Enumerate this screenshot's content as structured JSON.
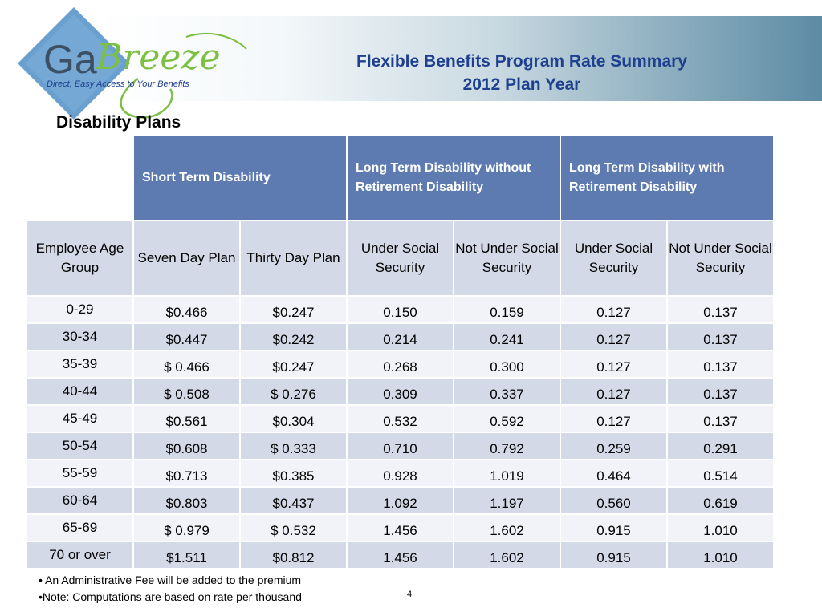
{
  "logo": {
    "text_ga": "Ga",
    "text_breeze": "Breeze",
    "tagline": "Direct, Easy Access to Your Benefits",
    "colors": {
      "diamond": "#6aa0d0",
      "ga": "#3d4f63",
      "breeze": "#7cc043",
      "tagline": "#1f3f8f"
    }
  },
  "title": {
    "line1": "Flexible Benefits  Program Rate Summary",
    "line2": "2012 Plan Year"
  },
  "section_title": "Disability  Plans",
  "table": {
    "groups": {
      "std": "Short Term Disability",
      "ltd_without": "Long Term Disability without Retirement Disability",
      "ltd_with": "Long Term Disability with Retirement Disability"
    },
    "subheaders": {
      "age_group": "Employee Age Group",
      "seven_day": "Seven Day Plan",
      "thirty_day": "Thirty Day Plan",
      "ltd_without_under": "Under Social Security",
      "ltd_without_not_under": "Not Under Social Security",
      "ltd_with_under": "Under Social Security",
      "ltd_with_not_under": "Not Under Social Security"
    },
    "rows": [
      [
        "0-29",
        "$0.466",
        "$0.247",
        "0.150",
        "0.159",
        "0.127",
        "0.137"
      ],
      [
        "30-34",
        "$0.447",
        "$0.242",
        "0.214",
        "0.241",
        "0.127",
        "0.137"
      ],
      [
        "35-39",
        "$ 0.466",
        "$0.247",
        "0.268",
        "0.300",
        "0.127",
        "0.137"
      ],
      [
        "40-44",
        "$ 0.508",
        "$ 0.276",
        "0.309",
        "0.337",
        "0.127",
        "0.137"
      ],
      [
        "45-49",
        "$0.561",
        "$0.304",
        "0.532",
        "0.592",
        "0.127",
        "0.137"
      ],
      [
        "50-54",
        "$0.608",
        "$  0.333",
        "0.710",
        "0.792",
        "0.259",
        "0.291"
      ],
      [
        "55-59",
        "$0.713",
        "$0.385",
        "0.928",
        "1.019",
        "0.464",
        "0.514"
      ],
      [
        "60-64",
        "$0.803",
        "$0.437",
        "1.092",
        "1.197",
        "0.560",
        "0.619"
      ],
      [
        "65-69",
        "$ 0.979",
        "$ 0.532",
        "1.456",
        "1.602",
        "0.915",
        "1.010"
      ],
      [
        "70  or over",
        "$1.511",
        "$0.812",
        "1.456",
        "1.602",
        "0.915",
        "1.010"
      ]
    ]
  },
  "notes": [
    "• An  Administrative Fee  will be added to the premium",
    "•Note:  Computations are based on rate per thousand"
  ],
  "page_number": "4",
  "colors": {
    "header_fill": "#5d7ab1",
    "subheader_fill": "#d3d9e7",
    "row_light": "#f1f3f8",
    "row_dark": "#d3d9e7",
    "title_text": "#1f3f8f"
  }
}
